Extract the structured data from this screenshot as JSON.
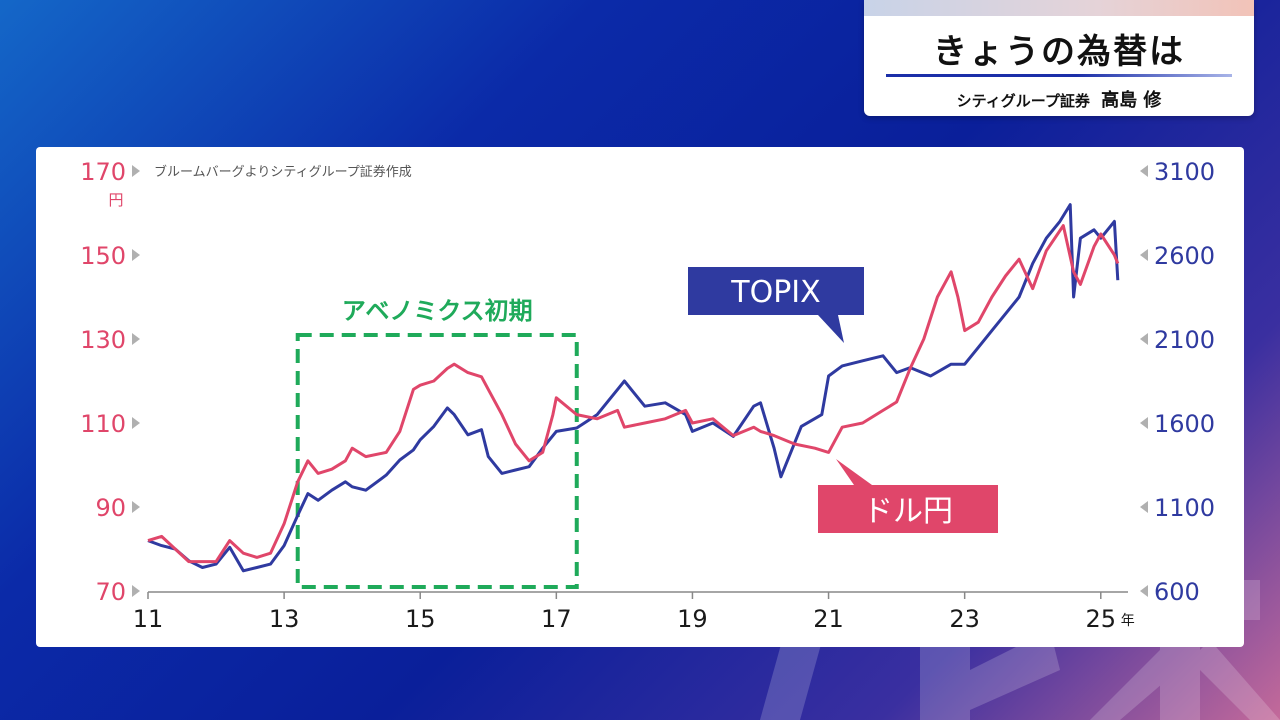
{
  "header": {
    "title": "きょうの為替は",
    "subtitle": "シティグループ証券",
    "name": "高島 修"
  },
  "colors": {
    "usdjpy": "#e0466a",
    "topix": "#2f3aa0",
    "highlight": "#1faa5a"
  },
  "chart_data": {
    "type": "line",
    "source": "ブルームバーグよりシティグループ証券作成",
    "left_axis": {
      "ticks": [
        "170",
        "150",
        "130",
        "110",
        "90",
        "70"
      ],
      "values": [
        170,
        150,
        130,
        110,
        90,
        70
      ],
      "unit": "円",
      "ylim": [
        70,
        170
      ]
    },
    "right_axis": {
      "ticks": [
        "3100",
        "2600",
        "2100",
        "1600",
        "1100",
        "600"
      ],
      "values": [
        3100,
        2600,
        2100,
        1600,
        1100,
        600
      ],
      "ylim": [
        600,
        3100
      ]
    },
    "x_axis": {
      "ticks": [
        "11",
        "13",
        "15",
        "17",
        "19",
        "21",
        "23",
        "25"
      ],
      "values": [
        2011,
        2013,
        2015,
        2017,
        2019,
        2021,
        2023,
        2025
      ],
      "unit": "年",
      "xlim": [
        2011,
        2025.4
      ]
    },
    "highlight": {
      "label": "アベノミクス初期",
      "x_range": [
        2013.2,
        2017.3
      ]
    },
    "series": [
      {
        "name": "ドル円",
        "axis": "left",
        "x": [
          2011.0,
          2011.2,
          2011.4,
          2011.6,
          2011.8,
          2012.0,
          2012.2,
          2012.4,
          2012.6,
          2012.8,
          2013.0,
          2013.2,
          2013.35,
          2013.5,
          2013.7,
          2013.9,
          2014.0,
          2014.2,
          2014.5,
          2014.7,
          2014.9,
          2015.0,
          2015.2,
          2015.4,
          2015.5,
          2015.7,
          2015.9,
          2016.0,
          2016.2,
          2016.4,
          2016.6,
          2016.8,
          2016.95,
          2017.0,
          2017.3,
          2017.6,
          2017.9,
          2018.0,
          2018.3,
          2018.6,
          2018.9,
          2019.0,
          2019.3,
          2019.6,
          2019.9,
          2020.0,
          2020.2,
          2020.5,
          2020.8,
          2021.0,
          2021.2,
          2021.5,
          2021.8,
          2022.0,
          2022.2,
          2022.4,
          2022.6,
          2022.8,
          2022.9,
          2023.0,
          2023.2,
          2023.4,
          2023.6,
          2023.8,
          2024.0,
          2024.2,
          2024.45,
          2024.6,
          2024.7,
          2024.9,
          2025.0,
          2025.2,
          2025.25
        ],
        "values": [
          82,
          83,
          80,
          77,
          77,
          77,
          82,
          79,
          78,
          79,
          86,
          96,
          101,
          98,
          99,
          101,
          104,
          102,
          103,
          108,
          118,
          119,
          120,
          123,
          124,
          122,
          121,
          118,
          112,
          105,
          101,
          103,
          112,
          116,
          112,
          111,
          113,
          109,
          110,
          111,
          113,
          110,
          111,
          107,
          109,
          108,
          107,
          105,
          104,
          103,
          109,
          110,
          113,
          115,
          123,
          130,
          140,
          146,
          140,
          132,
          134,
          140,
          145,
          149,
          142,
          151,
          157,
          146,
          143,
          152,
          155,
          150,
          148
        ]
      },
      {
        "name": "TOPIX",
        "axis": "right",
        "x": [
          2011.0,
          2011.2,
          2011.4,
          2011.6,
          2011.8,
          2012.0,
          2012.2,
          2012.4,
          2012.6,
          2012.8,
          2013.0,
          2013.2,
          2013.35,
          2013.5,
          2013.7,
          2013.9,
          2014.0,
          2014.2,
          2014.5,
          2014.7,
          2014.9,
          2015.0,
          2015.2,
          2015.4,
          2015.5,
          2015.7,
          2015.9,
          2016.0,
          2016.2,
          2016.4,
          2016.6,
          2016.8,
          2017.0,
          2017.3,
          2017.6,
          2017.9,
          2018.0,
          2018.3,
          2018.6,
          2018.9,
          2019.0,
          2019.3,
          2019.6,
          2019.9,
          2020.0,
          2020.2,
          2020.3,
          2020.6,
          2020.9,
          2021.0,
          2021.2,
          2021.5,
          2021.8,
          2022.0,
          2022.2,
          2022.5,
          2022.8,
          2023.0,
          2023.2,
          2023.4,
          2023.6,
          2023.8,
          2024.0,
          2024.2,
          2024.4,
          2024.55,
          2024.6,
          2024.7,
          2024.9,
          2025.0,
          2025.2,
          2025.25
        ],
        "values": [
          900,
          870,
          850,
          780,
          740,
          760,
          860,
          720,
          740,
          760,
          870,
          1050,
          1180,
          1140,
          1200,
          1250,
          1220,
          1200,
          1290,
          1380,
          1440,
          1500,
          1580,
          1690,
          1650,
          1530,
          1560,
          1400,
          1300,
          1320,
          1340,
          1450,
          1550,
          1570,
          1650,
          1800,
          1850,
          1700,
          1720,
          1650,
          1550,
          1600,
          1520,
          1700,
          1720,
          1450,
          1280,
          1580,
          1650,
          1880,
          1940,
          1970,
          2000,
          1900,
          1930,
          1880,
          1950,
          1950,
          2050,
          2150,
          2250,
          2350,
          2550,
          2700,
          2800,
          2900,
          2350,
          2700,
          2750,
          2700,
          2800,
          2450
        ]
      }
    ]
  }
}
